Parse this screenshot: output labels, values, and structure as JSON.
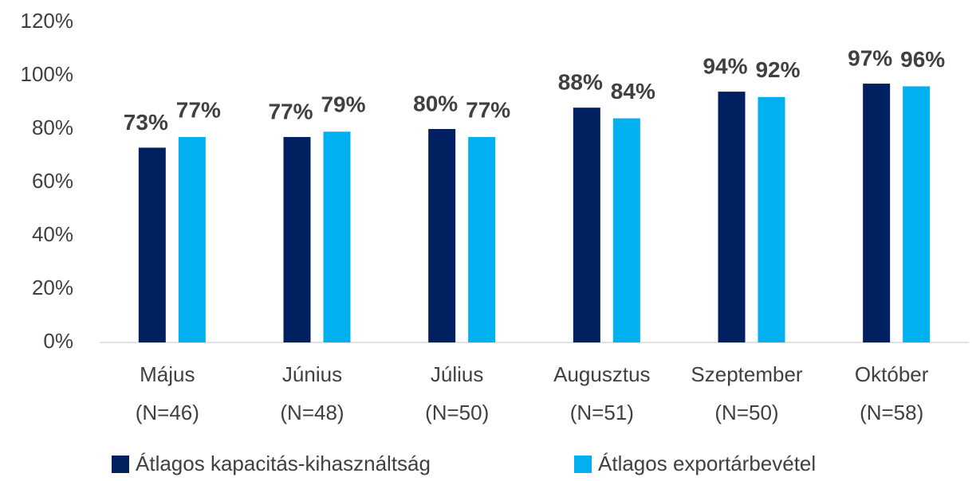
{
  "chart_data": {
    "type": "bar",
    "categories": [
      [
        "Május",
        "(N=46)"
      ],
      [
        "Június",
        "(N=48)"
      ],
      [
        "Július",
        "(N=50)"
      ],
      [
        "Augusztus",
        "(N=51)"
      ],
      [
        "Szeptember",
        "(N=50)"
      ],
      [
        "Október",
        "(N=58)"
      ]
    ],
    "series": [
      {
        "name": "Átlagos kapacitás-kihasználtság",
        "color": "#002060",
        "values": [
          73,
          77,
          80,
          88,
          94,
          97
        ],
        "value_labels": [
          "73%",
          "77%",
          "80%",
          "88%",
          "94%",
          "97%"
        ]
      },
      {
        "name": "Átlagos exportárbevétel",
        "color": "#00b0f0",
        "values": [
          77,
          79,
          77,
          84,
          92,
          96
        ],
        "value_labels": [
          "77%",
          "79%",
          "77%",
          "84%",
          "92%",
          "96%"
        ]
      }
    ],
    "ylim": [
      0,
      120
    ],
    "yticks": [
      {
        "value": 0,
        "label": "0%"
      },
      {
        "value": 20,
        "label": "20%"
      },
      {
        "value": 40,
        "label": "40%"
      },
      {
        "value": 60,
        "label": "60%"
      },
      {
        "value": 80,
        "label": "80%"
      },
      {
        "value": 100,
        "label": "100%"
      },
      {
        "value": 120,
        "label": "120%"
      }
    ],
    "grid": false,
    "legend": "bottom"
  }
}
